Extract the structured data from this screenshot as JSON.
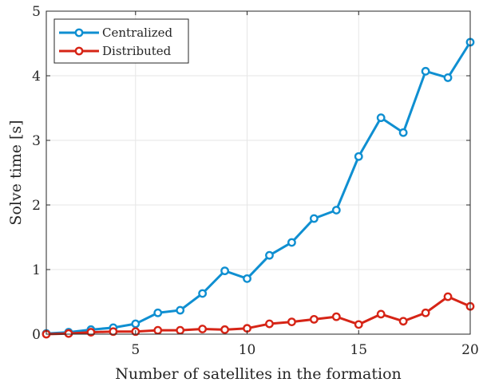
{
  "chart_data": {
    "type": "line",
    "xlabel": "Number of satellites in the formation",
    "ylabel": "Solve time [s]",
    "xlim": [
      1,
      20
    ],
    "ylim": [
      0,
      5
    ],
    "xticks": [
      "5",
      "10",
      "15",
      "20"
    ],
    "yticks": [
      "0",
      "1",
      "2",
      "3",
      "4",
      "5"
    ],
    "grid": true,
    "legend": "top-left",
    "x": [
      1,
      2,
      3,
      4,
      5,
      6,
      7,
      8,
      9,
      10,
      11,
      12,
      13,
      14,
      15,
      16,
      17,
      18,
      19,
      20
    ],
    "series": [
      {
        "name": "Centralized",
        "color": "#0f8fd1",
        "values": [
          0.01,
          0.03,
          0.07,
          0.1,
          0.16,
          0.33,
          0.37,
          0.63,
          0.98,
          0.86,
          1.22,
          1.42,
          1.79,
          1.92,
          2.75,
          3.35,
          3.12,
          4.07,
          3.97,
          4.52
        ]
      },
      {
        "name": "Distributed",
        "color": "#d62416",
        "values": [
          0.0,
          0.01,
          0.03,
          0.04,
          0.04,
          0.06,
          0.06,
          0.08,
          0.07,
          0.09,
          0.16,
          0.19,
          0.23,
          0.27,
          0.15,
          0.31,
          0.2,
          0.33,
          0.58,
          0.43
        ]
      }
    ]
  }
}
